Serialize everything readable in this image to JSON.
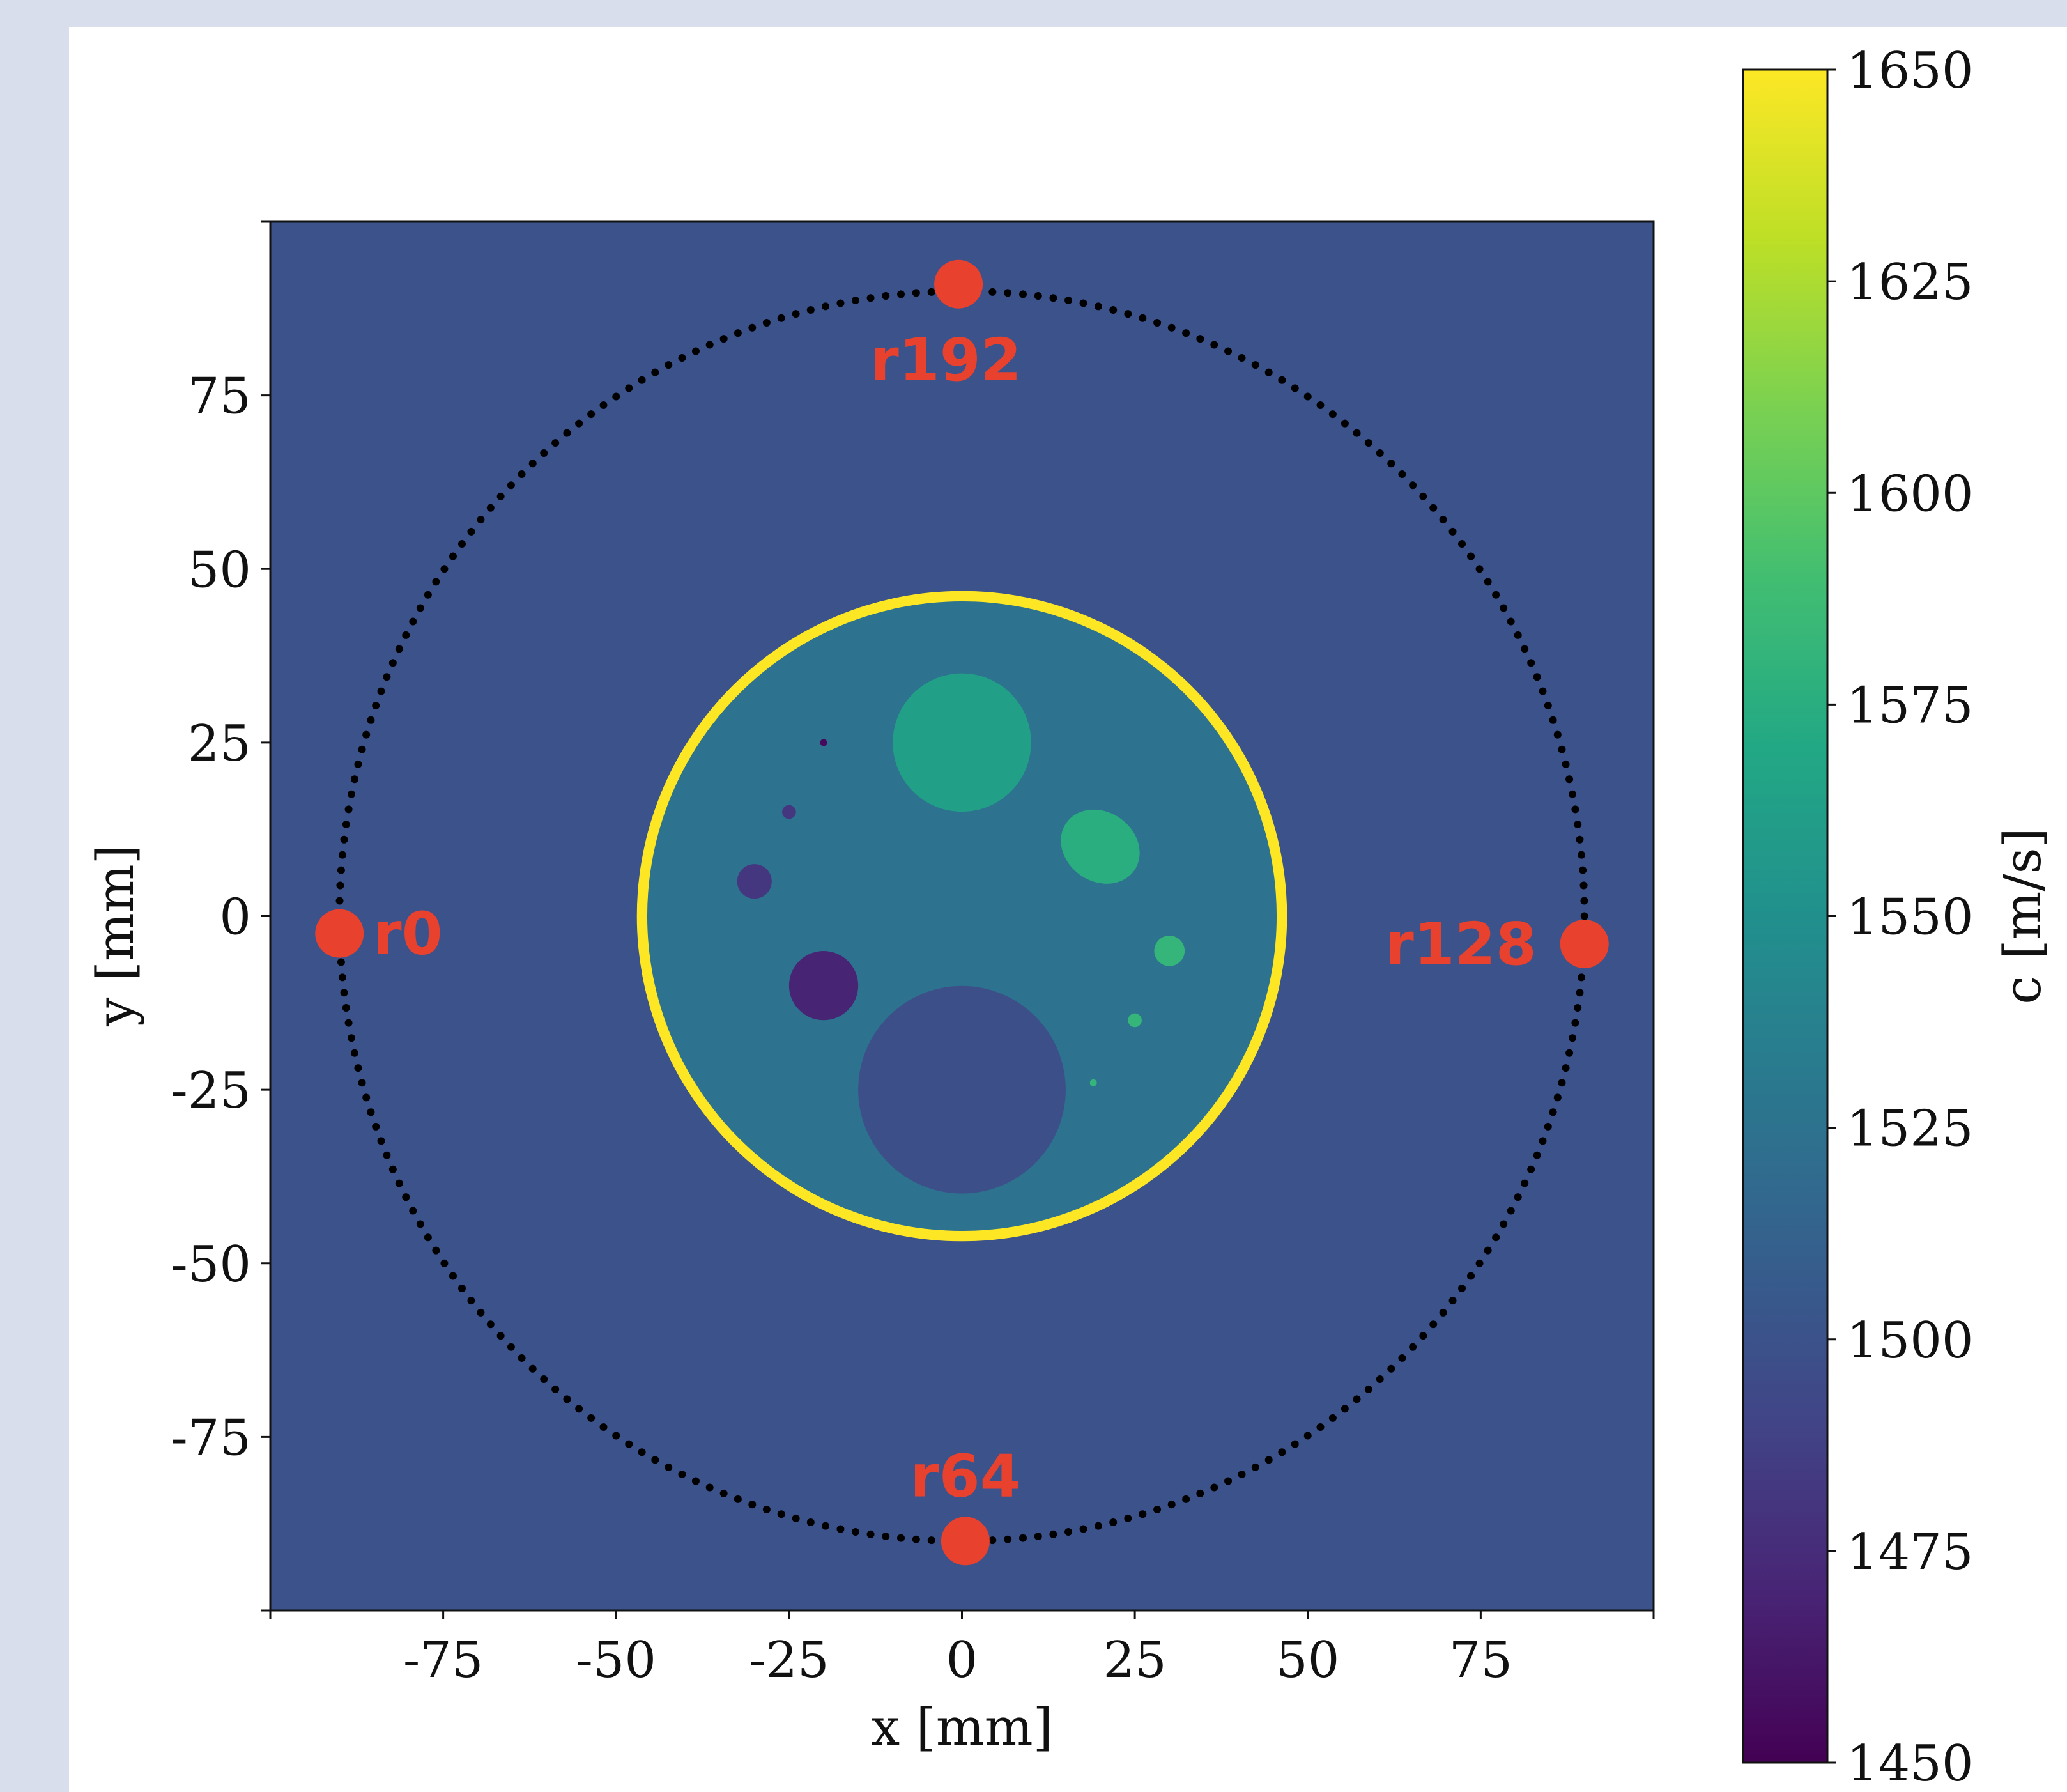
{
  "chart_data": {
    "type": "heatmap",
    "title": "",
    "xlabel": "x [mm]",
    "ylabel": "y [mm]",
    "xlim": [
      -100,
      100
    ],
    "ylim": [
      -100,
      100
    ],
    "xticks": [
      "-75",
      "-50",
      "-25",
      "0",
      "25",
      "50",
      "75"
    ],
    "yticks": [
      "75",
      "50",
      "25",
      "0",
      "-25",
      "-50",
      "-75"
    ],
    "grid": false,
    "colorbar": {
      "label": "c [m/s]",
      "colormap": "viridis",
      "range": [
        1450,
        1650
      ],
      "ticks": [
        "1650",
        "1625",
        "1600",
        "1575",
        "1550",
        "1525",
        "1500",
        "1475",
        "1450"
      ]
    },
    "background_speed": 1500,
    "transducer_ring": {
      "radius_mm": 90,
      "element_count": 256,
      "color": "#000000"
    },
    "phantom": {
      "outline": {
        "cx": 0,
        "cy": 0,
        "r": 47,
        "speed": 1650,
        "color": "#fde725"
      },
      "body": {
        "cx": 0,
        "cy": 0,
        "r": 45.5,
        "speed": 1525
      },
      "inclusions": [
        {
          "shape": "circle",
          "cx": 0,
          "cy": 25,
          "r": 10,
          "speed": 1563
        },
        {
          "shape": "ellipse",
          "cx": 20,
          "cy": 10,
          "rx": 6,
          "ry": 5,
          "speed": 1575
        },
        {
          "shape": "circle",
          "cx": 30,
          "cy": -5,
          "r": 2.2,
          "speed": 1582
        },
        {
          "shape": "circle",
          "cx": 25,
          "cy": -15,
          "r": 1,
          "speed": 1582
        },
        {
          "shape": "circle",
          "cx": 19,
          "cy": -24,
          "r": 0.5,
          "speed": 1582
        },
        {
          "shape": "circle",
          "cx": -20,
          "cy": -10,
          "r": 5,
          "speed": 1470
        },
        {
          "shape": "circle",
          "cx": -30,
          "cy": 5,
          "r": 2.5,
          "speed": 1482
        },
        {
          "shape": "circle",
          "cx": -25,
          "cy": 15,
          "r": 1,
          "speed": 1482
        },
        {
          "shape": "circle",
          "cx": -20,
          "cy": 25,
          "r": 0.5,
          "speed": 1455
        },
        {
          "shape": "circle",
          "cx": 0,
          "cy": -25,
          "r": 15,
          "speed": 1498
        }
      ]
    },
    "highlighted_receivers": [
      {
        "label": "r0",
        "x": -90,
        "y": -2.5,
        "label_side": "right"
      },
      {
        "label": "r64",
        "x": 0.5,
        "y": -90,
        "label_side": "above"
      },
      {
        "label": "r128",
        "x": 90,
        "y": -4,
        "label_side": "left"
      },
      {
        "label": "r192",
        "x": -0.5,
        "y": 91,
        "label_side": "below"
      }
    ],
    "marker_color": "#e8412e"
  }
}
